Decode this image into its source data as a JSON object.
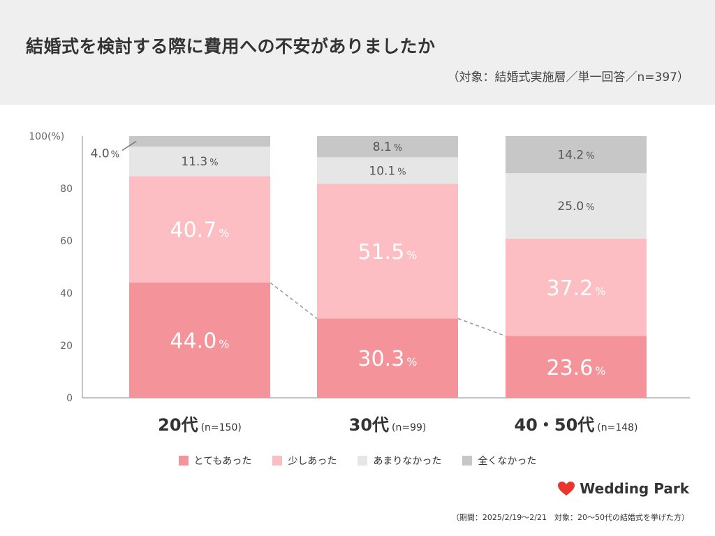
{
  "title": "結婚式を検討する際に費用への不安がありましたか",
  "subtitle": "（対象：結婚式実施層／単一回答／n=397）",
  "chart_data": {
    "type": "bar",
    "stacked": true,
    "categories": [
      "20代",
      "30代",
      "40・50代"
    ],
    "category_ns": [
      "(n=150)",
      "(n=99)",
      "(n=148)"
    ],
    "series": [
      {
        "name": "とてもあった",
        "values": [
          44.0,
          30.3,
          23.6
        ],
        "color": "#f4949a"
      },
      {
        "name": "少しあった",
        "values": [
          40.7,
          51.5,
          37.2
        ],
        "color": "#fcbec2"
      },
      {
        "name": "あまりなかった",
        "values": [
          11.3,
          10.1,
          25.0
        ],
        "color": "#e6e6e6"
      },
      {
        "name": "全くなかった",
        "values": [
          4.0,
          8.1,
          14.2
        ],
        "color": "#c7c7c7"
      }
    ],
    "value_labels": [
      [
        "44.0",
        "30.3",
        "23.6"
      ],
      [
        "40.7",
        "51.5",
        "37.2"
      ],
      [
        "11.3",
        "10.1",
        "25.0"
      ],
      [
        "4.0",
        "8.1",
        "14.2"
      ]
    ],
    "percent_sign": "%",
    "yticks": [
      "0",
      "20",
      "40",
      "60",
      "80",
      "100"
    ],
    "ytick_values": [
      0,
      20,
      40,
      60,
      80,
      100
    ],
    "y_unit": "(%)",
    "ylim": [
      0,
      100
    ],
    "grid": false,
    "legend_position": "bottom",
    "connector_lines": true
  },
  "logo_text": "Wedding Park",
  "footnote": "（期間：2025/2/19〜2/21　対象：20〜50代の結婚式を挙げた方）"
}
